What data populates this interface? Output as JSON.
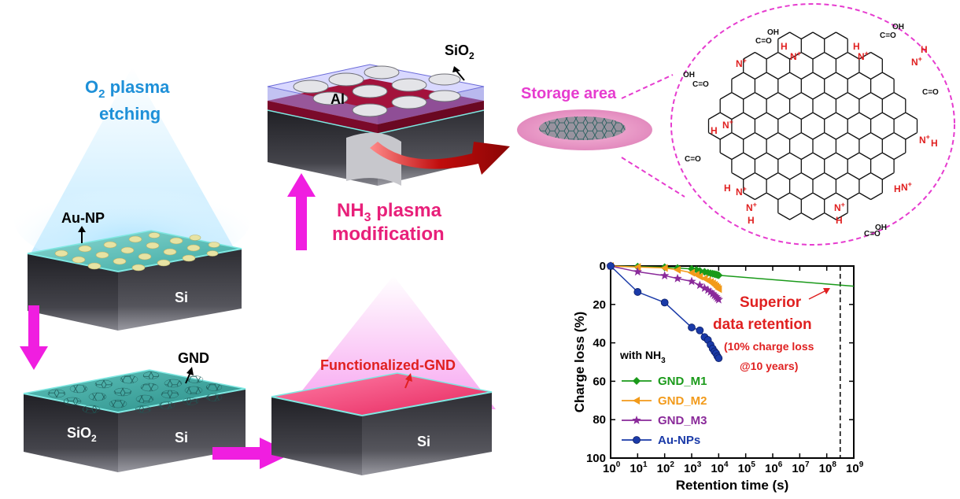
{
  "labels": {
    "o2_line1": "O",
    "o2_sub": "2",
    "o2_line1_rest": " plasma",
    "o2_line2": "etching",
    "au_np": "Au-NP",
    "si": "Si",
    "gnd": "GND",
    "sio2_bottom": "SiO",
    "sio2_bottom_sub": "2",
    "al": "Al",
    "sio2_top": "SiO",
    "sio2_top_sub": "2",
    "storage_area": "Storage area",
    "nh3_line1_a": "NH",
    "nh3_sub": "3",
    "nh3_line1_b": " plasma",
    "nh3_line2": "modification",
    "functionalized_gnd": "Functionalized-GND"
  },
  "molecule": {
    "cooh": "C=O",
    "oh": "OH",
    "h": "H",
    "n_plus": "N",
    "plus": "+",
    "o": "O"
  },
  "colors": {
    "blue_text": "#1e90d8",
    "pink_text": "#e8207a",
    "red_text": "#e02020",
    "magenta_arrow": "#f01ee0",
    "dark_red_arrow": "#b30c0c"
  },
  "chart_data": {
    "type": "scatter",
    "xlabel": "Retention time (s)",
    "ylabel": "Charge loss (%)",
    "x_scale": "log",
    "xlim": [
      1,
      1000000000
    ],
    "ylim": [
      100,
      0
    ],
    "x_ticks": [
      "10",
      "10",
      "10",
      "10",
      "10",
      "10",
      "10",
      "10",
      "10",
      "10"
    ],
    "x_tick_exps": [
      "0",
      "1",
      "2",
      "3",
      "4",
      "5",
      "6",
      "7",
      "8",
      "9"
    ],
    "y_ticks": [
      "0",
      "20",
      "40",
      "60",
      "80",
      "100"
    ],
    "legend_title_a": "with NH",
    "legend_title_sub": "3",
    "legend_placement": "bottom-left",
    "dashed_line_x": 315000000,
    "annotation_line1": "Superior",
    "annotation_line2": "data retention",
    "annotation_line3": "(10% charge loss",
    "annotation_line4": "@10 years)",
    "series": [
      {
        "name": "GND_M1",
        "color": "#1a9a1a",
        "marker": "diamond",
        "x": [
          1,
          10,
          100,
          300,
          1000,
          1500,
          2000,
          3000,
          4000,
          5000,
          6000,
          7000,
          8000,
          9000,
          10000
        ],
        "y": [
          0,
          0.3,
          0.6,
          1.0,
          1.5,
          2.0,
          2.5,
          3.0,
          3.5,
          3.8,
          4.0,
          4.2,
          4.4,
          4.6,
          4.8
        ],
        "fit_x": [
          10000,
          1000000000
        ],
        "fit_y": [
          4.8,
          10.5
        ]
      },
      {
        "name": "GND_M2",
        "color": "#f29a1a",
        "marker": "triangle-left",
        "x": [
          1,
          10,
          100,
          300,
          1000,
          1500,
          2000,
          3000,
          4000,
          5000,
          6000,
          7000,
          8000,
          9000,
          10000
        ],
        "y": [
          0,
          0.5,
          1.0,
          2.0,
          3.5,
          4.5,
          5.5,
          6.5,
          7.5,
          8.3,
          9.0,
          9.8,
          10.5,
          11.2,
          12.0
        ]
      },
      {
        "name": "GND_M3",
        "color": "#8a2a9a",
        "marker": "star",
        "x": [
          1,
          10,
          100,
          300,
          1000,
          2000,
          3000,
          4000,
          5000,
          6000,
          7000,
          8000,
          9000,
          10000
        ],
        "y": [
          0,
          3.0,
          5.0,
          6.5,
          8.0,
          10.0,
          11.5,
          12.5,
          13.5,
          14.5,
          15.3,
          16.0,
          16.8,
          17.5
        ]
      },
      {
        "name": "Au-NPs",
        "color": "#1a3aa8",
        "marker": "circle",
        "x": [
          1,
          10,
          100,
          1000,
          2000,
          3000,
          4000,
          5000,
          6000,
          7000,
          8000,
          9000,
          10000
        ],
        "y": [
          0,
          13.5,
          19.0,
          32.0,
          33.5,
          37.0,
          38.5,
          41.0,
          43.0,
          44.5,
          45.5,
          47.0,
          48.0
        ]
      }
    ]
  }
}
